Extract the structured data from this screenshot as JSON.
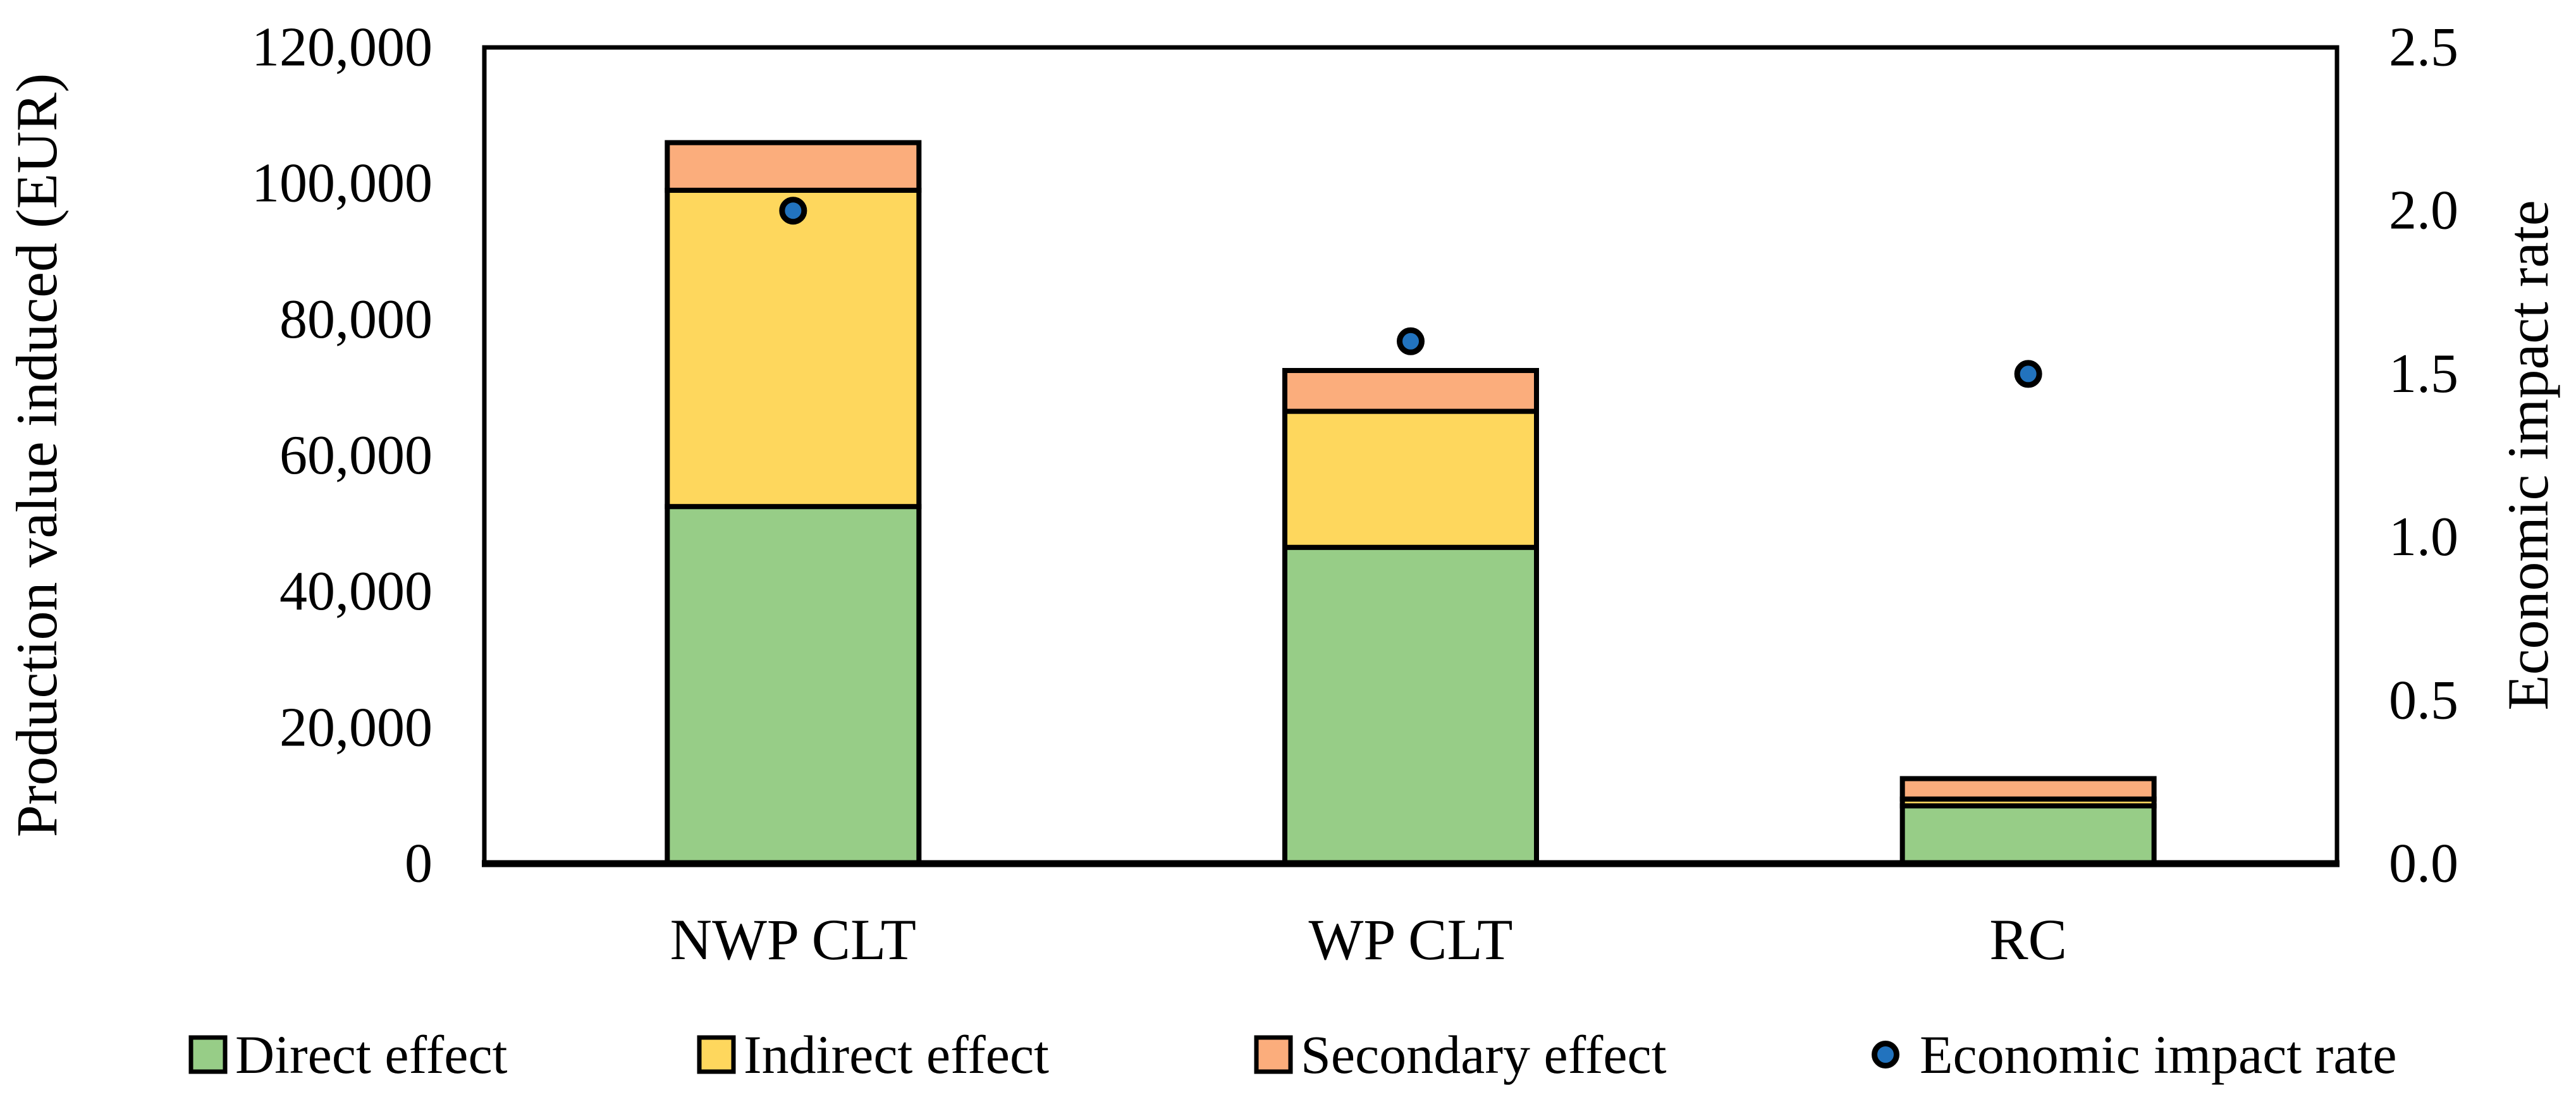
{
  "chart_data": {
    "type": "bar",
    "subtype": "stacked-bar-with-scatter-overlay",
    "title": "",
    "categories": [
      "NWP CLT",
      "WP CLT",
      "RC"
    ],
    "series": [
      {
        "name": "Direct effect",
        "type": "bar",
        "axis": "left",
        "color": "#97CD87",
        "values": [
          52500,
          46500,
          8500
        ]
      },
      {
        "name": "Indirect effect",
        "type": "bar",
        "axis": "left",
        "color": "#FED75D",
        "values": [
          46500,
          20000,
          1000
        ]
      },
      {
        "name": "Secondary effect",
        "type": "bar",
        "axis": "left",
        "color": "#FBAD7C",
        "values": [
          7000,
          6000,
          3000
        ]
      },
      {
        "name": "Economic impact rate",
        "type": "scatter",
        "axis": "right",
        "color": "#2273BE",
        "values": [
          2.0,
          1.6,
          1.5
        ]
      }
    ],
    "bar_totals": [
      106000,
      72500,
      12500
    ],
    "ylabel_left": "Production value induced (EUR)",
    "ylabel_right": "Economic impact rate",
    "y_left": {
      "min": 0,
      "max": 120000,
      "step": 20000,
      "tick_labels": [
        "0",
        "20,000",
        "40,000",
        "60,000",
        "80,000",
        "100,000",
        "120,000"
      ]
    },
    "y_right": {
      "min": 0,
      "max": 2.5,
      "step": 0.5,
      "tick_labels": [
        "0.0",
        "0.5",
        "1.0",
        "1.5",
        "2.0",
        "2.5"
      ]
    },
    "grid": false,
    "legend_position": "bottom",
    "plot_background": "#ffffff",
    "border_color": "#000000"
  },
  "legend": {
    "items": [
      {
        "label": "Direct effect",
        "marker": "square",
        "color": "#97CD87"
      },
      {
        "label": "Indirect effect",
        "marker": "square",
        "color": "#FED75D"
      },
      {
        "label": "Secondary effect",
        "marker": "square",
        "color": "#FBAD7C"
      },
      {
        "label": "Economic impact rate",
        "marker": "circle",
        "color": "#2273BE"
      }
    ]
  }
}
